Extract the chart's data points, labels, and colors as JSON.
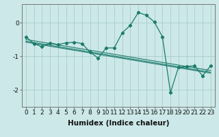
{
  "title": "",
  "xlabel": "Humidex (Indice chaleur)",
  "bg_color": "#cce8e8",
  "grid_color": "#aacccc",
  "line_color": "#1a7a6a",
  "x_values": [
    0,
    1,
    2,
    3,
    4,
    5,
    6,
    7,
    8,
    9,
    10,
    11,
    12,
    13,
    14,
    15,
    16,
    17,
    18,
    19,
    20,
    21,
    22,
    23
  ],
  "main_y": [
    -0.42,
    -0.62,
    -0.72,
    -0.6,
    -0.65,
    -0.6,
    -0.58,
    -0.62,
    -0.88,
    -1.05,
    -0.75,
    -0.75,
    -0.3,
    -0.08,
    0.3,
    0.22,
    0.02,
    -0.42,
    -2.08,
    -1.32,
    -1.3,
    -1.28,
    -1.58,
    -1.28
  ],
  "trend1_y": [
    -0.5,
    -0.54,
    -0.58,
    -0.62,
    -0.66,
    -0.7,
    -0.74,
    -0.78,
    -0.82,
    -0.86,
    -0.9,
    -0.94,
    -0.98,
    -1.02,
    -1.06,
    -1.1,
    -1.14,
    -1.18,
    -1.22,
    -1.26,
    -1.3,
    -1.34,
    -1.38,
    -1.42
  ],
  "trend2_y": [
    -0.55,
    -0.59,
    -0.63,
    -0.67,
    -0.71,
    -0.75,
    -0.79,
    -0.83,
    -0.87,
    -0.91,
    -0.95,
    -0.99,
    -1.03,
    -1.07,
    -1.11,
    -1.15,
    -1.19,
    -1.23,
    -1.27,
    -1.31,
    -1.35,
    -1.39,
    -1.43,
    -1.47
  ],
  "trend3_y": [
    -0.58,
    -0.62,
    -0.66,
    -0.7,
    -0.74,
    -0.78,
    -0.82,
    -0.86,
    -0.9,
    -0.94,
    -0.98,
    -1.02,
    -1.06,
    -1.1,
    -1.14,
    -1.18,
    -1.22,
    -1.26,
    -1.3,
    -1.34,
    -1.38,
    -1.42,
    -1.46,
    -1.5
  ],
  "ylim": [
    -2.5,
    0.55
  ],
  "yticks": [
    0,
    -1,
    -2
  ],
  "xticks": [
    0,
    1,
    2,
    3,
    4,
    5,
    6,
    7,
    8,
    9,
    10,
    11,
    12,
    13,
    14,
    15,
    16,
    17,
    18,
    19,
    20,
    21,
    22,
    23
  ],
  "xlabel_fontsize": 7.5,
  "tick_fontsize": 6.5
}
